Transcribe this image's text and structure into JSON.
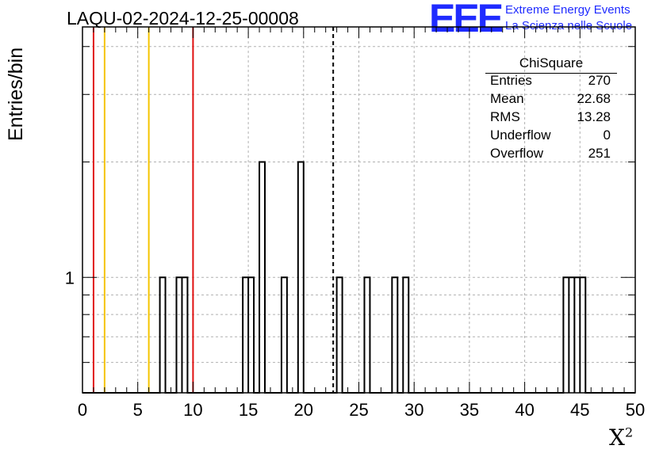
{
  "chart_data": {
    "type": "bar",
    "title": "LAQU-02-2024-12-25-00008",
    "xlabel": "X",
    "xlabel_sup": "2",
    "ylabel": "Entries/bin",
    "xlim": [
      0,
      50
    ],
    "x_ticks": [
      "0",
      "5",
      "10",
      "15",
      "20",
      "25",
      "30",
      "35",
      "40",
      "45",
      "50"
    ],
    "y_scale": "log",
    "ylim": [
      0.5,
      4.5
    ],
    "y_tick_labels": [
      {
        "value": 1,
        "label": "1"
      }
    ],
    "grid": true,
    "bin_width": 0.5,
    "bins": [
      {
        "x0": 7.0,
        "value": 1
      },
      {
        "x0": 8.5,
        "value": 1
      },
      {
        "x0": 9.0,
        "value": 1
      },
      {
        "x0": 14.5,
        "value": 1
      },
      {
        "x0": 15.0,
        "value": 1
      },
      {
        "x0": 16.0,
        "value": 2
      },
      {
        "x0": 18.0,
        "value": 1
      },
      {
        "x0": 19.5,
        "value": 2
      },
      {
        "x0": 23.0,
        "value": 1
      },
      {
        "x0": 25.5,
        "value": 1
      },
      {
        "x0": 28.0,
        "value": 1
      },
      {
        "x0": 29.0,
        "value": 1
      },
      {
        "x0": 43.5,
        "value": 1
      },
      {
        "x0": 44.0,
        "value": 1
      },
      {
        "x0": 44.5,
        "value": 1
      },
      {
        "x0": 45.0,
        "value": 1
      }
    ],
    "vertical_lines": [
      {
        "x": 1.0,
        "color": "#e01010",
        "style": "solid"
      },
      {
        "x": 2.0,
        "color": "#f5c400",
        "style": "solid"
      },
      {
        "x": 6.0,
        "color": "#f5c400",
        "style": "solid"
      },
      {
        "x": 10.0,
        "color": "#e01010",
        "style": "solid"
      },
      {
        "x": 22.68,
        "color": "#000000",
        "style": "dashed"
      }
    ],
    "stats": {
      "title": "ChiSquare",
      "rows": [
        {
          "label": "Entries",
          "value": "270"
        },
        {
          "label": "Mean",
          "value": "22.68"
        },
        {
          "label": "RMS",
          "value": "13.28"
        },
        {
          "label": "Underflow",
          "value": "0"
        },
        {
          "label": "Overflow",
          "value": "251"
        }
      ]
    }
  },
  "logo": {
    "text": "EEE",
    "line1": "Extreme Energy Events",
    "line2": "La Scienza nelle Scuole",
    "color": "#1f2bff"
  }
}
